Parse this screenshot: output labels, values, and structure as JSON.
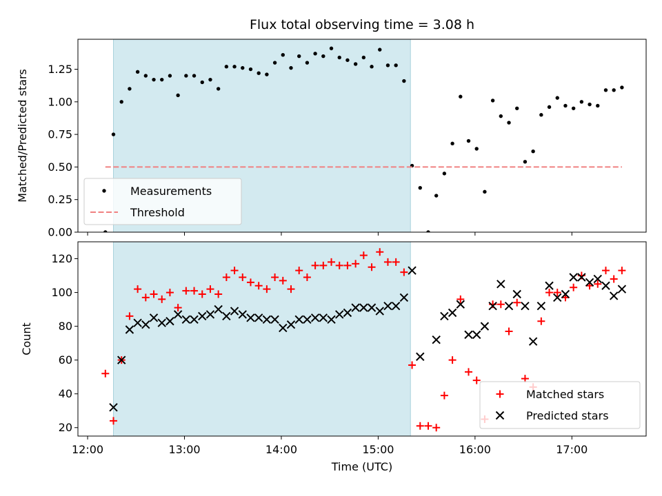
{
  "figure": {
    "title": "Flux total observing time = 3.08 h",
    "background": "#ffffff",
    "shade_color": "#d3eaf0",
    "shade_edge_color": "#a9d2dc"
  },
  "chart_data": [
    {
      "type": "scatter",
      "panel": "top",
      "title": "Flux total observing time = 3.08 h",
      "xlabel": "",
      "ylabel": "Matched/Predicted stars",
      "xlim": [
        "11:54",
        "17:46"
      ],
      "ylim": [
        0,
        1.48
      ],
      "y_ticks": [
        0.0,
        0.25,
        0.5,
        0.75,
        1.0,
        1.25
      ],
      "y_tick_labels": [
        "0.00",
        "0.25",
        "0.50",
        "0.75",
        "1.00",
        "1.25"
      ],
      "x_ticks": [
        "12:00",
        "13:00",
        "14:00",
        "15:00",
        "16:00",
        "17:00"
      ],
      "show_x_tick_labels": false,
      "grid": false,
      "legend": {
        "position": "lower-left",
        "entries": [
          "Measurements",
          "Threshold"
        ]
      },
      "shaded_interval": {
        "from": "12:16",
        "to": "15:20"
      },
      "series": [
        {
          "name": "Measurements",
          "marker": "dot",
          "color": "#000000",
          "points": [
            [
              "12:11",
              0.0
            ],
            [
              "12:16",
              0.75
            ],
            [
              "12:21",
              1.0
            ],
            [
              "12:26",
              1.1
            ],
            [
              "12:31",
              1.23
            ],
            [
              "12:36",
              1.2
            ],
            [
              "12:41",
              1.17
            ],
            [
              "12:46",
              1.17
            ],
            [
              "12:51",
              1.2
            ],
            [
              "12:56",
              1.05
            ],
            [
              "13:01",
              1.2
            ],
            [
              "13:06",
              1.2
            ],
            [
              "13:11",
              1.15
            ],
            [
              "13:16",
              1.17
            ],
            [
              "13:21",
              1.1
            ],
            [
              "13:26",
              1.27
            ],
            [
              "13:31",
              1.27
            ],
            [
              "13:36",
              1.26
            ],
            [
              "13:41",
              1.25
            ],
            [
              "13:46",
              1.22
            ],
            [
              "13:51",
              1.21
            ],
            [
              "13:56",
              1.3
            ],
            [
              "14:01",
              1.36
            ],
            [
              "14:06",
              1.26
            ],
            [
              "14:11",
              1.35
            ],
            [
              "14:16",
              1.3
            ],
            [
              "14:21",
              1.37
            ],
            [
              "14:26",
              1.35
            ],
            [
              "14:31",
              1.41
            ],
            [
              "14:36",
              1.34
            ],
            [
              "14:41",
              1.32
            ],
            [
              "14:46",
              1.29
            ],
            [
              "14:51",
              1.34
            ],
            [
              "14:56",
              1.27
            ],
            [
              "15:01",
              1.4
            ],
            [
              "15:06",
              1.28
            ],
            [
              "15:11",
              1.28
            ],
            [
              "15:16",
              1.16
            ],
            [
              "15:21",
              0.51
            ],
            [
              "15:26",
              0.34
            ],
            [
              "15:31",
              0.0
            ],
            [
              "15:36",
              0.28
            ],
            [
              "15:41",
              0.45
            ],
            [
              "15:46",
              0.68
            ],
            [
              "15:51",
              1.04
            ],
            [
              "15:56",
              0.7
            ],
            [
              "16:01",
              0.64
            ],
            [
              "16:06",
              0.31
            ],
            [
              "16:11",
              1.01
            ],
            [
              "16:16",
              0.89
            ],
            [
              "16:21",
              0.84
            ],
            [
              "16:26",
              0.95
            ],
            [
              "16:31",
              0.54
            ],
            [
              "16:36",
              0.62
            ],
            [
              "16:41",
              0.9
            ],
            [
              "16:46",
              0.96
            ],
            [
              "16:51",
              1.03
            ],
            [
              "16:56",
              0.97
            ],
            [
              "17:01",
              0.95
            ],
            [
              "17:06",
              1.0
            ],
            [
              "17:11",
              0.98
            ],
            [
              "17:16",
              0.97
            ],
            [
              "17:21",
              1.09
            ],
            [
              "17:26",
              1.09
            ],
            [
              "17:31",
              1.11
            ]
          ]
        },
        {
          "name": "Threshold",
          "marker": "dashed-line",
          "color": "#f08080",
          "points": [
            [
              "12:11",
              0.5
            ],
            [
              "17:31",
              0.5
            ]
          ]
        }
      ]
    },
    {
      "type": "scatter",
      "panel": "bottom",
      "title": "",
      "xlabel": "Time (UTC)",
      "ylabel": "Count",
      "xlim": [
        "11:54",
        "17:46"
      ],
      "ylim": [
        15,
        130
      ],
      "y_ticks": [
        20,
        40,
        60,
        80,
        100,
        120
      ],
      "y_tick_labels": [
        "20",
        "40",
        "60",
        "80",
        "100",
        "120"
      ],
      "x_ticks": [
        "12:00",
        "13:00",
        "14:00",
        "15:00",
        "16:00",
        "17:00"
      ],
      "show_x_tick_labels": true,
      "grid": false,
      "legend": {
        "position": "lower-right",
        "entries": [
          "Matched stars",
          "Predicted stars"
        ]
      },
      "shaded_interval": {
        "from": "12:16",
        "to": "15:20"
      },
      "series": [
        {
          "name": "Matched stars",
          "marker": "plus",
          "color": "#ff0000",
          "points": [
            [
              "12:11",
              52
            ],
            [
              "12:16",
              24
            ],
            [
              "12:21",
              60
            ],
            [
              "12:26",
              86
            ],
            [
              "12:31",
              102
            ],
            [
              "12:36",
              97
            ],
            [
              "12:41",
              99
            ],
            [
              "12:46",
              96
            ],
            [
              "12:51",
              100
            ],
            [
              "12:56",
              91
            ],
            [
              "13:01",
              101
            ],
            [
              "13:06",
              101
            ],
            [
              "13:11",
              99
            ],
            [
              "13:16",
              102
            ],
            [
              "13:21",
              99
            ],
            [
              "13:26",
              109
            ],
            [
              "13:31",
              113
            ],
            [
              "13:36",
              109
            ],
            [
              "13:41",
              106
            ],
            [
              "13:46",
              104
            ],
            [
              "13:51",
              102
            ],
            [
              "13:56",
              109
            ],
            [
              "14:01",
              107
            ],
            [
              "14:06",
              102
            ],
            [
              "14:11",
              113
            ],
            [
              "14:16",
              109
            ],
            [
              "14:21",
              116
            ],
            [
              "14:26",
              116
            ],
            [
              "14:31",
              118
            ],
            [
              "14:36",
              116
            ],
            [
              "14:41",
              116
            ],
            [
              "14:46",
              117
            ],
            [
              "14:51",
              122
            ],
            [
              "14:56",
              115
            ],
            [
              "15:01",
              124
            ],
            [
              "15:06",
              118
            ],
            [
              "15:11",
              118
            ],
            [
              "15:16",
              112
            ],
            [
              "15:21",
              57
            ],
            [
              "15:26",
              21
            ],
            [
              "15:31",
              21
            ],
            [
              "15:36",
              20
            ],
            [
              "15:41",
              39
            ],
            [
              "15:46",
              60
            ],
            [
              "15:51",
              96
            ],
            [
              "15:56",
              53
            ],
            [
              "16:01",
              48
            ],
            [
              "16:06",
              25
            ],
            [
              "16:11",
              93
            ],
            [
              "16:16",
              93
            ],
            [
              "16:21",
              77
            ],
            [
              "16:26",
              94
            ],
            [
              "16:31",
              49
            ],
            [
              "16:36",
              44
            ],
            [
              "16:41",
              83
            ],
            [
              "16:46",
              100
            ],
            [
              "16:51",
              100
            ],
            [
              "16:56",
              97
            ],
            [
              "17:01",
              103
            ],
            [
              "17:06",
              110
            ],
            [
              "17:11",
              104
            ],
            [
              "17:16",
              105
            ],
            [
              "17:21",
              113
            ],
            [
              "17:26",
              108
            ],
            [
              "17:31",
              113
            ]
          ]
        },
        {
          "name": "Predicted stars",
          "marker": "x",
          "color": "#000000",
          "points": [
            [
              "12:16",
              32
            ],
            [
              "12:21",
              60
            ],
            [
              "12:26",
              78
            ],
            [
              "12:31",
              82
            ],
            [
              "12:36",
              81
            ],
            [
              "12:41",
              85
            ],
            [
              "12:46",
              82
            ],
            [
              "12:51",
              83
            ],
            [
              "12:56",
              87
            ],
            [
              "13:01",
              84
            ],
            [
              "13:06",
              84
            ],
            [
              "13:11",
              86
            ],
            [
              "13:16",
              87
            ],
            [
              "13:21",
              90
            ],
            [
              "13:26",
              86
            ],
            [
              "13:31",
              89
            ],
            [
              "13:36",
              87
            ],
            [
              "13:41",
              85
            ],
            [
              "13:46",
              85
            ],
            [
              "13:51",
              84
            ],
            [
              "13:56",
              84
            ],
            [
              "14:01",
              79
            ],
            [
              "14:06",
              81
            ],
            [
              "14:11",
              84
            ],
            [
              "14:16",
              84
            ],
            [
              "14:21",
              85
            ],
            [
              "14:26",
              85
            ],
            [
              "14:31",
              84
            ],
            [
              "14:36",
              87
            ],
            [
              "14:41",
              88
            ],
            [
              "14:46",
              91
            ],
            [
              "14:51",
              91
            ],
            [
              "14:56",
              91
            ],
            [
              "15:01",
              89
            ],
            [
              "15:06",
              92
            ],
            [
              "15:11",
              92
            ],
            [
              "15:16",
              97
            ],
            [
              "15:21",
              113
            ],
            [
              "15:26",
              62
            ],
            [
              "15:36",
              72
            ],
            [
              "15:41",
              86
            ],
            [
              "15:46",
              88
            ],
            [
              "15:51",
              93
            ],
            [
              "15:56",
              75
            ],
            [
              "16:01",
              75
            ],
            [
              "16:06",
              80
            ],
            [
              "16:11",
              92
            ],
            [
              "16:16",
              105
            ],
            [
              "16:21",
              92
            ],
            [
              "16:26",
              99
            ],
            [
              "16:31",
              92
            ],
            [
              "16:36",
              71
            ],
            [
              "16:41",
              92
            ],
            [
              "16:46",
              104
            ],
            [
              "16:51",
              97
            ],
            [
              "16:56",
              99
            ],
            [
              "17:01",
              109
            ],
            [
              "17:06",
              109
            ],
            [
              "17:11",
              106
            ],
            [
              "17:16",
              108
            ],
            [
              "17:21",
              104
            ],
            [
              "17:26",
              98
            ],
            [
              "17:31",
              102
            ]
          ]
        }
      ]
    }
  ]
}
